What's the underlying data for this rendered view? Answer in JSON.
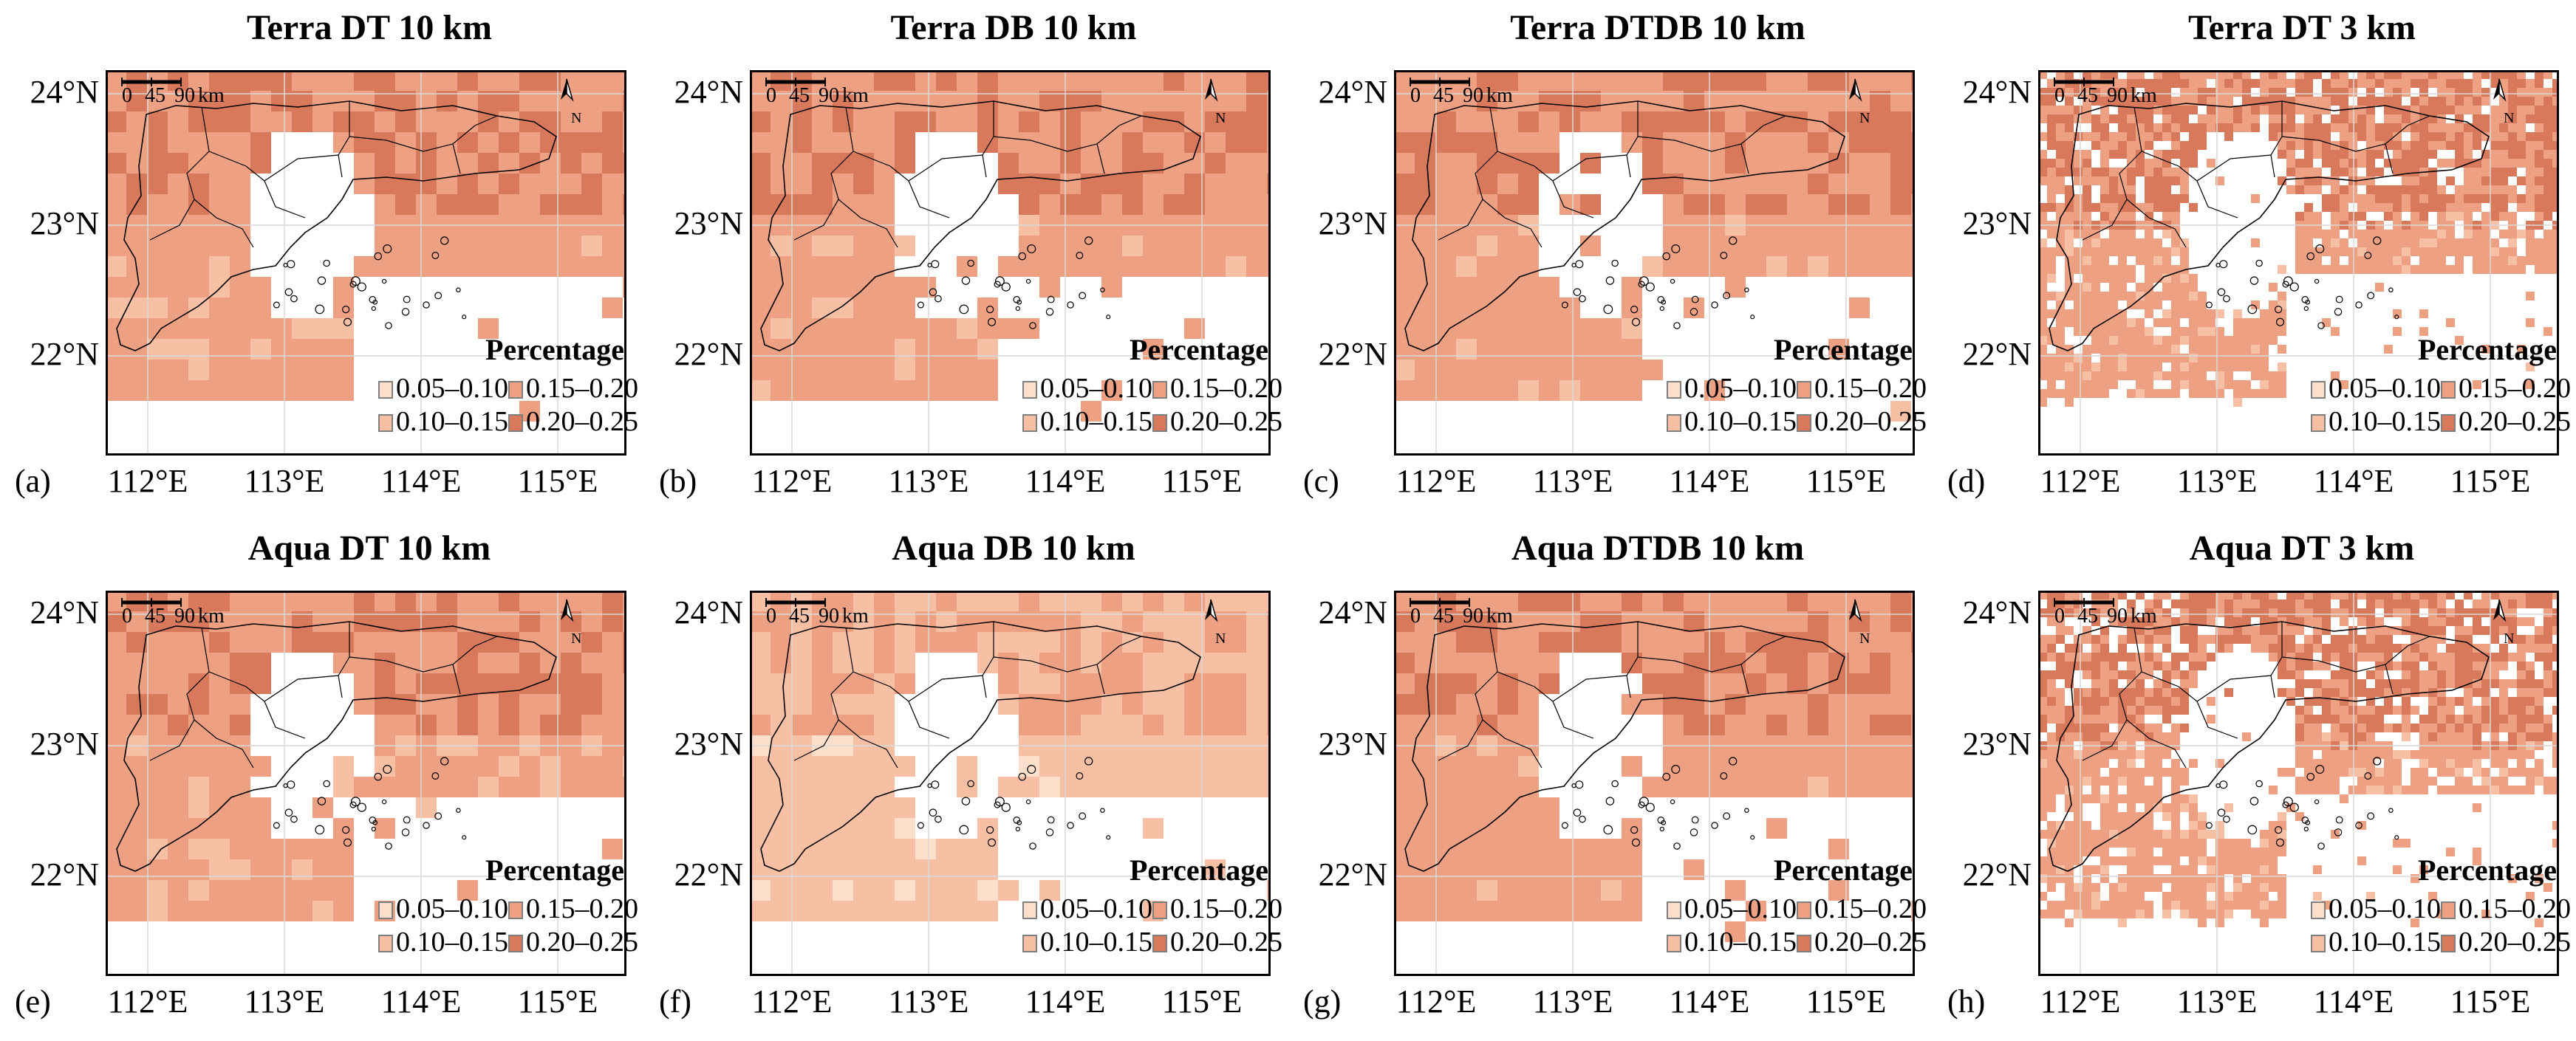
{
  "legend": {
    "title": "Percentage",
    "classes": [
      {
        "label": "0.05–0.10",
        "color": "#fde0cb"
      },
      {
        "label": "0.10–0.15",
        "color": "#f7bfa4"
      },
      {
        "label": "0.15–0.20",
        "color": "#eda082"
      },
      {
        "label": "0.20–0.25",
        "color": "#d9795b"
      }
    ]
  },
  "axes": {
    "lat_labels": [
      "24°N",
      "23°N",
      "22°N"
    ],
    "lon_labels": [
      "112°E",
      "113°E",
      "114°E",
      "115°E"
    ]
  },
  "scalebar": {
    "ticks": [
      "0",
      "45",
      "90"
    ],
    "unit": "km"
  },
  "north_label": "N",
  "panels": [
    {
      "label": "(a)",
      "title": "Terra DT 10 km",
      "resolution": "10km",
      "dominant_class": 2
    },
    {
      "label": "(b)",
      "title": "Terra DB 10 km",
      "resolution": "10km",
      "dominant_class": 2
    },
    {
      "label": "(c)",
      "title": "Terra DTDB 10 km",
      "resolution": "10km",
      "dominant_class": 2
    },
    {
      "label": "(d)",
      "title": "Terra DT 3 km",
      "resolution": "3km",
      "dominant_class": 2
    },
    {
      "label": "(e)",
      "title": "Aqua DT 10 km",
      "resolution": "10km",
      "dominant_class": 2
    },
    {
      "label": "(f)",
      "title": "Aqua DB 10 km",
      "resolution": "10km",
      "dominant_class": 1
    },
    {
      "label": "(g)",
      "title": "Aqua DTDB 10 km",
      "resolution": "10km",
      "dominant_class": 2
    },
    {
      "label": "(h)",
      "title": "Aqua DT 3 km",
      "resolution": "3km",
      "dominant_class": 2
    }
  ]
}
